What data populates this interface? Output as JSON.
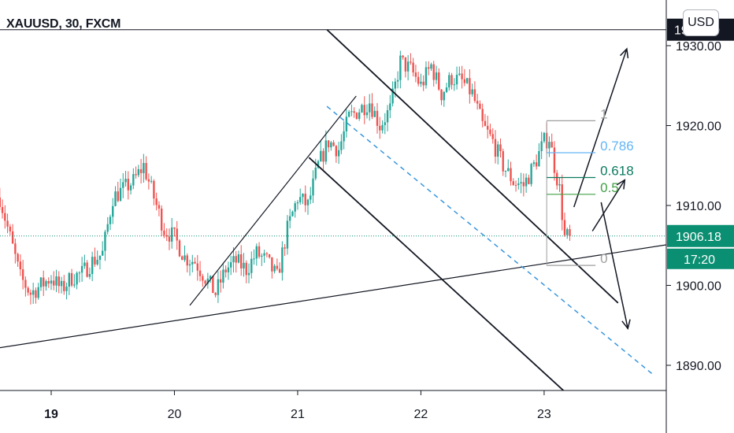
{
  "symbol": "XAUUSD, 30, FXCM",
  "currency_button": "USD",
  "price_axis": {
    "ticks": [
      "1890.00",
      "1900.00",
      "1910.00",
      "1920.00",
      "1930.00"
    ],
    "tick_values": [
      1890,
      1900,
      1910,
      1920,
      1930
    ],
    "hidden_value_label": "1930.00",
    "current_price": "1906.18",
    "countdown": "17:20"
  },
  "time_axis": {
    "labels": [
      "19",
      "20",
      "21",
      "22",
      "23"
    ],
    "label_times": [
      0,
      24,
      48,
      72,
      96
    ]
  },
  "fib_levels": [
    {
      "label": "1",
      "price": 1920.6,
      "color": "#9e9e9e"
    },
    {
      "label": "0.786",
      "price": 1916.6,
      "color": "#64b5f6"
    },
    {
      "label": "0.618",
      "price": 1913.5,
      "color": "#0b7a5e"
    },
    {
      "label": "0.5",
      "price": 1911.4,
      "color": "#43a047"
    },
    {
      "label": "0",
      "price": 1902.5,
      "color": "#9e9e9e"
    }
  ],
  "colors": {
    "up": "#26a69a",
    "down": "#ef5350",
    "last_price": "#0b8f72",
    "mid_line": "#3a96dd",
    "drawing": "#131722"
  },
  "chart_data": {
    "type": "candlestick",
    "instrument": "XAUUSD",
    "timeframe_minutes": 30,
    "ylim": [
      1883,
      1937
    ],
    "x_unit": "hours from start of day 19",
    "xlim": [
      -10,
      120
    ],
    "close_path": [
      [
        -10,
        1911
      ],
      [
        -8,
        1906
      ],
      [
        -6,
        1901
      ],
      [
        -4,
        1899
      ],
      [
        -2,
        1900
      ],
      [
        0,
        1901
      ],
      [
        2,
        1899.5
      ],
      [
        4,
        1901
      ],
      [
        6,
        1901.5
      ],
      [
        8,
        1903
      ],
      [
        10,
        1904
      ],
      [
        12,
        1911
      ],
      [
        14,
        1912
      ],
      [
        16,
        1913
      ],
      [
        18,
        1915
      ],
      [
        20,
        1911
      ],
      [
        22,
        1907
      ],
      [
        24,
        1906
      ],
      [
        26,
        1903.5
      ],
      [
        28,
        1903
      ],
      [
        30,
        1901
      ],
      [
        32,
        1899
      ],
      [
        34,
        1902
      ],
      [
        36,
        1903
      ],
      [
        38,
        1902
      ],
      [
        40,
        1904
      ],
      [
        42,
        1903
      ],
      [
        44,
        1901
      ],
      [
        46,
        1907
      ],
      [
        48,
        1911
      ],
      [
        50,
        1910
      ],
      [
        52,
        1915
      ],
      [
        54,
        1918
      ],
      [
        56,
        1917
      ],
      [
        58,
        1921
      ],
      [
        60,
        1922
      ],
      [
        62,
        1923
      ],
      [
        64,
        1920
      ],
      [
        66,
        1922
      ],
      [
        68,
        1928
      ],
      [
        70,
        1927
      ],
      [
        72,
        1925
      ],
      [
        74,
        1927.5
      ],
      [
        76,
        1924
      ],
      [
        78,
        1926
      ],
      [
        80,
        1925.5
      ],
      [
        82,
        1924
      ],
      [
        84,
        1920
      ],
      [
        86,
        1918
      ],
      [
        88,
        1915
      ],
      [
        90,
        1913
      ],
      [
        92,
        1912.5
      ],
      [
        94,
        1915
      ],
      [
        96,
        1918
      ],
      [
        97,
        1918.5
      ],
      [
        98,
        1915
      ],
      [
        99,
        1912
      ],
      [
        100,
        1906
      ],
      [
        101,
        1906.2
      ]
    ],
    "annotations": [
      {
        "kind": "horizontal_line",
        "price": 1932.0
      },
      {
        "kind": "trendline",
        "from": [
          -10,
          1892.2
        ],
        "to": [
          120,
          1905.1
        ]
      },
      {
        "kind": "trendline",
        "from": [
          27,
          1897.5
        ],
        "to": [
          59.4,
          1923.7
        ]
      },
      {
        "kind": "channel_upper",
        "from": [
          53.7,
          1932.0
        ],
        "to": [
          110.4,
          1897.8
        ]
      },
      {
        "kind": "channel_mid_dashed",
        "from": [
          53.7,
          1922.4
        ],
        "to": [
          117.1,
          1888.9
        ]
      },
      {
        "kind": "channel_lower",
        "from": [
          50.2,
          1916.0
        ],
        "to": [
          106.8,
          1882.7
        ]
      },
      {
        "kind": "arrow",
        "from": [
          101.8,
          1909.8
        ],
        "to": [
          112.1,
          1929.6
        ]
      },
      {
        "kind": "arrow",
        "from": [
          105.4,
          1906.8
        ],
        "to": [
          111.7,
          1913.2
        ]
      },
      {
        "kind": "arrow",
        "from": [
          107.1,
          1910.4
        ],
        "to": [
          112.3,
          1894.6
        ]
      }
    ]
  }
}
